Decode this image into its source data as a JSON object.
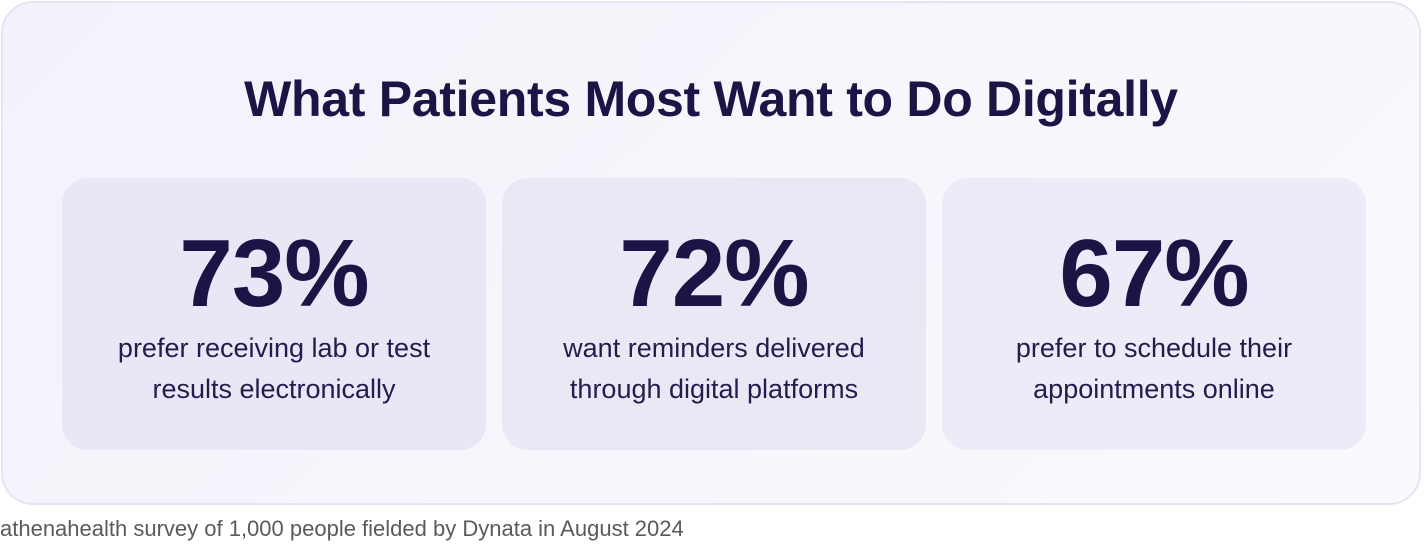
{
  "title": "What Patients Most Want to Do Digitally",
  "stats": [
    {
      "value": "73%",
      "lines": [
        "prefer receiving lab or test",
        "results electronically"
      ]
    },
    {
      "value": "72%",
      "lines": [
        "want reminders delivered",
        "through digital platforms"
      ]
    },
    {
      "value": "67%",
      "lines": [
        "prefer to schedule their",
        "appointments online"
      ]
    }
  ],
  "source": "athenahealth survey of 1,000 people fielded by Dynata in August 2024",
  "colors": {
    "title_text": "#1b1444",
    "panel_background": "#f5f3fb",
    "card_background": "#ebe8f6",
    "source_text": "#5a5a5a"
  }
}
